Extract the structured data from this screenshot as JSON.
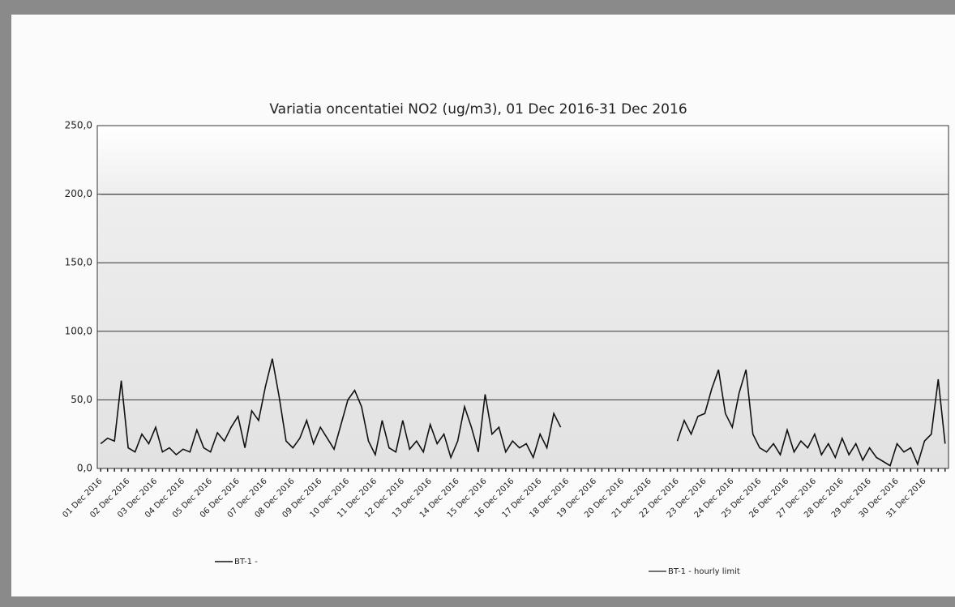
{
  "chart_data": {
    "type": "line",
    "title": "Variatia oncentatiei  NO2 (ug/m3),  01 Dec 2016-31 Dec 2016",
    "categories": [
      "01 Dec 2016",
      null,
      null,
      null,
      "02 Dec 2016",
      null,
      null,
      null,
      "03 Dec 2016",
      null,
      null,
      null,
      "04 Dec 2016",
      null,
      null,
      null,
      "05 Dec 2016",
      null,
      null,
      null,
      "06 Dec 2016",
      null,
      null,
      null,
      "07 Dec 2016",
      null,
      null,
      null,
      "08 Dec 2016",
      null,
      null,
      null,
      "09 Dec 2016",
      null,
      null,
      null,
      "10 Dec 2016",
      null,
      null,
      null,
      "11 Dec 2016",
      null,
      null,
      null,
      "12 Dec 2016",
      null,
      null,
      null,
      "13 Dec 2016",
      null,
      null,
      null,
      "14 Dec 2016",
      null,
      null,
      null,
      "15 Dec 2016",
      null,
      null,
      null,
      "16 Dec 2016",
      null,
      null,
      null,
      "17 Dec 2016",
      null,
      null,
      null,
      "18 Dec 2016",
      null,
      null,
      null,
      "19 Dec 2016",
      null,
      null,
      null,
      "20 Dec 2016",
      null,
      null,
      null,
      "21 Dec 2016",
      null,
      null,
      null,
      "22 Dec 2016",
      null,
      null,
      null,
      "23 Dec 2016",
      null,
      null,
      null,
      "24 Dec 2016",
      null,
      null,
      null,
      "25 Dec 2016",
      null,
      null,
      null,
      "26 Dec 2016",
      null,
      null,
      null,
      "27 Dec 2016",
      null,
      null,
      null,
      "28 Dec 2016",
      null,
      null,
      null,
      "29 Dec 2016",
      null,
      null,
      null,
      "30 Dec 2016",
      null,
      null,
      null,
      "31 Dec 2016",
      null,
      null,
      null
    ],
    "series": [
      {
        "name": "BT-1 -",
        "color": "#111111",
        "values": [
          18,
          22,
          20,
          64,
          15,
          12,
          25,
          18,
          30,
          12,
          15,
          10,
          14,
          12,
          28,
          15,
          12,
          26,
          20,
          30,
          38,
          15,
          42,
          35,
          60,
          80,
          52,
          20,
          15,
          22,
          35,
          18,
          30,
          22,
          14,
          32,
          50,
          57,
          45,
          20,
          10,
          35,
          15,
          12,
          35,
          14,
          20,
          12,
          32,
          18,
          25,
          8,
          20,
          45,
          30,
          12,
          54,
          25,
          30,
          12,
          20,
          15,
          18,
          8,
          25,
          15,
          40,
          30,
          null,
          null,
          null,
          null,
          null,
          null,
          null,
          null,
          null,
          null,
          null,
          null,
          null,
          null,
          null,
          null,
          20,
          35,
          25,
          38,
          40,
          58,
          72,
          40,
          30,
          55,
          72,
          25,
          15,
          12,
          18,
          10,
          28,
          12,
          20,
          15,
          25,
          10,
          18,
          8,
          22,
          10,
          18,
          6,
          15,
          8,
          5,
          2,
          18,
          12,
          15,
          3,
          20,
          25,
          65,
          18
        ]
      },
      {
        "name": "BT-1 - hourly limit",
        "color": "#444444",
        "values": [
          200,
          200,
          200,
          200,
          200,
          200,
          200,
          200,
          200,
          200,
          200,
          200,
          200,
          200,
          200,
          200,
          200,
          200,
          200,
          200,
          200,
          200,
          200,
          200,
          200,
          200,
          200,
          200,
          200,
          200,
          200,
          200,
          200,
          200,
          200,
          200,
          200,
          200,
          200,
          200,
          200,
          200,
          200,
          200,
          200,
          200,
          200,
          200,
          200,
          200,
          200,
          200,
          200,
          200,
          200,
          200,
          200,
          200,
          200,
          200,
          200,
          200,
          200,
          200,
          200,
          200,
          200,
          200,
          200,
          200,
          200,
          200,
          200,
          200,
          200,
          200,
          200,
          200,
          200,
          200,
          200,
          200,
          200,
          200,
          200,
          200,
          200,
          200,
          200,
          200,
          200,
          200,
          200,
          200,
          200,
          200,
          200,
          200,
          200,
          200,
          200,
          200,
          200,
          200,
          200,
          200,
          200,
          200,
          200,
          200,
          200,
          200,
          200,
          200,
          200,
          200,
          200,
          200,
          200,
          200,
          200,
          200,
          200,
          200
        ]
      }
    ],
    "ylim": [
      0,
      250
    ],
    "yticks": [
      {
        "value": 0,
        "label": "0,0"
      },
      {
        "value": 50,
        "label": "50,0"
      },
      {
        "value": 100,
        "label": "100,0"
      },
      {
        "value": 150,
        "label": "150,0"
      },
      {
        "value": 200,
        "label": "200,0"
      },
      {
        "value": 250,
        "label": "250,0"
      }
    ],
    "grid": true
  }
}
